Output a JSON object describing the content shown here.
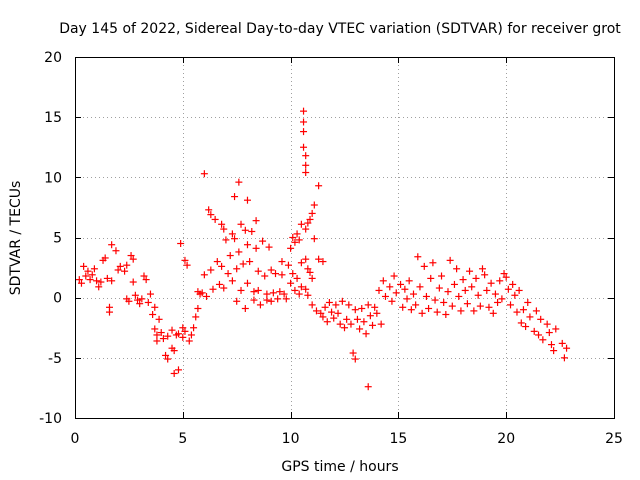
{
  "chart_data": {
    "type": "scatter",
    "title": "Day 145 of 2022, Sidereal Day-to-day VTEC variation (SDTVAR) for receiver grot",
    "xlabel": "GPS time / hours",
    "ylabel": "SDTVAR / TECUs",
    "xlim": [
      0,
      25
    ],
    "ylim": [
      -10,
      20
    ],
    "xticks": [
      0,
      5,
      10,
      15,
      20,
      25
    ],
    "yticks": [
      -10,
      -5,
      0,
      5,
      10,
      15,
      20
    ],
    "xtick_labels": [
      "0",
      "5",
      "10",
      "15",
      "20",
      "25"
    ],
    "ytick_labels": [
      "-10",
      "-5",
      "0",
      "5",
      "10",
      "15",
      "20"
    ],
    "grid": true,
    "marker": "+",
    "color": "#ff0000",
    "series": [
      {
        "name": "SDTVAR",
        "points": [
          [
            0.2,
            1.5
          ],
          [
            0.3,
            1.2
          ],
          [
            0.4,
            2.6
          ],
          [
            0.5,
            1.8
          ],
          [
            0.6,
            2.2
          ],
          [
            0.7,
            1.5
          ],
          [
            0.8,
            1.9
          ],
          [
            0.9,
            2.4
          ],
          [
            1.0,
            1.4
          ],
          [
            1.1,
            0.9
          ],
          [
            1.2,
            1.3
          ],
          [
            1.3,
            3.1
          ],
          [
            1.4,
            3.3
          ],
          [
            1.5,
            1.6
          ],
          [
            1.6,
            -0.8
          ],
          [
            1.6,
            -1.2
          ],
          [
            1.7,
            1.4
          ],
          [
            1.7,
            4.4
          ],
          [
            1.9,
            3.9
          ],
          [
            2.0,
            2.3
          ],
          [
            2.1,
            2.6
          ],
          [
            2.3,
            2.2
          ],
          [
            2.4,
            2.7
          ],
          [
            2.4,
            -0.1
          ],
          [
            2.5,
            -0.3
          ],
          [
            2.6,
            3.5
          ],
          [
            2.7,
            3.2
          ],
          [
            2.7,
            1.3
          ],
          [
            2.8,
            0.2
          ],
          [
            2.9,
            -0.2
          ],
          [
            3.0,
            -0.5
          ],
          [
            3.1,
            -0.1
          ],
          [
            3.2,
            1.8
          ],
          [
            3.3,
            1.5
          ],
          [
            3.4,
            -0.4
          ],
          [
            3.5,
            0.3
          ],
          [
            3.6,
            -1.4
          ],
          [
            3.7,
            -0.8
          ],
          [
            3.7,
            -2.6
          ],
          [
            3.8,
            -3.1
          ],
          [
            3.8,
            -3.6
          ],
          [
            3.9,
            -1.8
          ],
          [
            4.0,
            -2.9
          ],
          [
            4.1,
            -3.4
          ],
          [
            4.2,
            -4.8
          ],
          [
            4.3,
            -5.1
          ],
          [
            4.3,
            -3.2
          ],
          [
            4.5,
            -2.7
          ],
          [
            4.5,
            -4.2
          ],
          [
            4.6,
            -6.3
          ],
          [
            4.6,
            -4.4
          ],
          [
            4.7,
            -3.1
          ],
          [
            4.8,
            -3.0
          ],
          [
            4.8,
            -6.0
          ],
          [
            4.9,
            4.5
          ],
          [
            5.0,
            -2.5
          ],
          [
            5.0,
            -3.3
          ],
          [
            5.1,
            -2.8
          ],
          [
            5.1,
            3.1
          ],
          [
            5.2,
            2.7
          ],
          [
            5.3,
            -3.6
          ],
          [
            5.4,
            -3.1
          ],
          [
            5.5,
            -2.5
          ],
          [
            5.6,
            -1.6
          ],
          [
            5.7,
            -0.9
          ],
          [
            5.7,
            0.5
          ],
          [
            5.8,
            0.3
          ],
          [
            5.9,
            0.4
          ],
          [
            6.0,
            1.9
          ],
          [
            6.0,
            10.3
          ],
          [
            6.1,
            0.1
          ],
          [
            6.2,
            7.3
          ],
          [
            6.3,
            6.9
          ],
          [
            6.3,
            2.3
          ],
          [
            6.4,
            0.7
          ],
          [
            6.5,
            6.5
          ],
          [
            6.6,
            3.0
          ],
          [
            6.7,
            1.1
          ],
          [
            6.8,
            6.1
          ],
          [
            6.8,
            2.6
          ],
          [
            6.9,
            0.8
          ],
          [
            6.9,
            5.7
          ],
          [
            7.0,
            4.8
          ],
          [
            7.1,
            2.0
          ],
          [
            7.2,
            3.5
          ],
          [
            7.3,
            5.3
          ],
          [
            7.3,
            1.4
          ],
          [
            7.4,
            4.9
          ],
          [
            7.4,
            8.4
          ],
          [
            7.5,
            2.4
          ],
          [
            7.5,
            -0.3
          ],
          [
            7.6,
            9.6
          ],
          [
            7.6,
            3.8
          ],
          [
            7.7,
            6.1
          ],
          [
            7.7,
            0.6
          ],
          [
            7.8,
            2.8
          ],
          [
            7.9,
            5.6
          ],
          [
            7.9,
            -0.9
          ],
          [
            8.0,
            8.1
          ],
          [
            8.0,
            4.4
          ],
          [
            8.0,
            1.2
          ],
          [
            8.1,
            3.0
          ],
          [
            8.2,
            5.5
          ],
          [
            8.3,
            0.5
          ],
          [
            8.3,
            -0.2
          ],
          [
            8.4,
            6.4
          ],
          [
            8.4,
            4.1
          ],
          [
            8.5,
            2.2
          ],
          [
            8.5,
            0.6
          ],
          [
            8.6,
            -0.6
          ],
          [
            8.7,
            4.7
          ],
          [
            8.8,
            1.8
          ],
          [
            8.9,
            0.3
          ],
          [
            8.9,
            -0.2
          ],
          [
            9.0,
            4.2
          ],
          [
            9.1,
            2.3
          ],
          [
            9.1,
            -0.3
          ],
          [
            9.2,
            0.4
          ],
          [
            9.3,
            2.0
          ],
          [
            9.4,
            -0.1
          ],
          [
            9.5,
            0.5
          ],
          [
            9.6,
            1.9
          ],
          [
            9.6,
            3.0
          ],
          [
            9.7,
            0.3
          ],
          [
            9.8,
            -0.1
          ],
          [
            9.9,
            2.7
          ],
          [
            10.0,
            4.1
          ],
          [
            10.0,
            1.2
          ],
          [
            10.1,
            5.0
          ],
          [
            10.1,
            2.0
          ],
          [
            10.2,
            4.6
          ],
          [
            10.2,
            0.6
          ],
          [
            10.3,
            5.3
          ],
          [
            10.3,
            1.6
          ],
          [
            10.4,
            4.8
          ],
          [
            10.4,
            0.3
          ],
          [
            10.5,
            6.1
          ],
          [
            10.5,
            2.9
          ],
          [
            10.5,
            0.9
          ],
          [
            10.6,
            15.5
          ],
          [
            10.6,
            14.6
          ],
          [
            10.6,
            13.8
          ],
          [
            10.6,
            12.5
          ],
          [
            10.7,
            11.8
          ],
          [
            10.7,
            11.0
          ],
          [
            10.7,
            10.4
          ],
          [
            10.7,
            5.7
          ],
          [
            10.7,
            3.2
          ],
          [
            10.7,
            0.7
          ],
          [
            10.8,
            6.2
          ],
          [
            10.8,
            2.4
          ],
          [
            10.8,
            0.2
          ],
          [
            10.9,
            6.5
          ],
          [
            10.9,
            2.1
          ],
          [
            11.0,
            7.0
          ],
          [
            11.0,
            1.6
          ],
          [
            11.0,
            -0.6
          ],
          [
            11.1,
            7.7
          ],
          [
            11.1,
            4.9
          ],
          [
            11.2,
            -1.1
          ],
          [
            11.3,
            9.3
          ],
          [
            11.3,
            3.2
          ],
          [
            11.4,
            -1.3
          ],
          [
            11.5,
            3.0
          ],
          [
            11.5,
            -1.6
          ],
          [
            11.6,
            -0.8
          ],
          [
            11.7,
            -2.0
          ],
          [
            11.8,
            -0.4
          ],
          [
            11.9,
            -1.2
          ],
          [
            12.0,
            -1.7
          ],
          [
            12.1,
            -0.6
          ],
          [
            12.2,
            -1.3
          ],
          [
            12.3,
            -2.2
          ],
          [
            12.4,
            -0.3
          ],
          [
            12.5,
            -2.5
          ],
          [
            12.6,
            -1.8
          ],
          [
            12.7,
            -0.6
          ],
          [
            12.8,
            -2.2
          ],
          [
            12.9,
            -4.6
          ],
          [
            13.0,
            -5.1
          ],
          [
            13.0,
            -1.0
          ],
          [
            13.1,
            -1.8
          ],
          [
            13.2,
            -2.6
          ],
          [
            13.3,
            -0.9
          ],
          [
            13.4,
            -2.0
          ],
          [
            13.5,
            -3.0
          ],
          [
            13.6,
            -7.4
          ],
          [
            13.6,
            -0.6
          ],
          [
            13.7,
            -1.5
          ],
          [
            13.8,
            -2.3
          ],
          [
            13.9,
            -0.8
          ],
          [
            14.0,
            -1.3
          ],
          [
            14.1,
            0.6
          ],
          [
            14.2,
            -2.2
          ],
          [
            14.3,
            1.4
          ],
          [
            14.4,
            0.1
          ],
          [
            14.6,
            0.9
          ],
          [
            14.7,
            -0.3
          ],
          [
            14.8,
            1.8
          ],
          [
            14.9,
            0.4
          ],
          [
            15.1,
            1.1
          ],
          [
            15.2,
            -0.8
          ],
          [
            15.3,
            0.7
          ],
          [
            15.4,
            -0.1
          ],
          [
            15.5,
            1.4
          ],
          [
            15.6,
            -1.0
          ],
          [
            15.7,
            0.3
          ],
          [
            15.8,
            -0.6
          ],
          [
            15.9,
            3.4
          ],
          [
            16.0,
            0.9
          ],
          [
            16.1,
            -1.3
          ],
          [
            16.2,
            2.6
          ],
          [
            16.3,
            0.1
          ],
          [
            16.4,
            -0.9
          ],
          [
            16.5,
            1.6
          ],
          [
            16.6,
            2.9
          ],
          [
            16.7,
            -0.2
          ],
          [
            16.8,
            -1.2
          ],
          [
            16.9,
            0.8
          ],
          [
            17.0,
            1.8
          ],
          [
            17.1,
            -0.4
          ],
          [
            17.2,
            -1.4
          ],
          [
            17.3,
            0.5
          ],
          [
            17.4,
            3.1
          ],
          [
            17.5,
            -0.7
          ],
          [
            17.6,
            1.1
          ],
          [
            17.7,
            2.4
          ],
          [
            17.8,
            0.1
          ],
          [
            17.9,
            -1.1
          ],
          [
            18.0,
            1.5
          ],
          [
            18.1,
            0.6
          ],
          [
            18.2,
            -0.5
          ],
          [
            18.3,
            2.2
          ],
          [
            18.4,
            0.9
          ],
          [
            18.5,
            -1.1
          ],
          [
            18.6,
            1.6
          ],
          [
            18.7,
            0.2
          ],
          [
            18.8,
            -0.7
          ],
          [
            18.9,
            2.4
          ],
          [
            19.0,
            1.9
          ],
          [
            19.1,
            0.6
          ],
          [
            19.2,
            -0.8
          ],
          [
            19.3,
            1.2
          ],
          [
            19.4,
            -1.3
          ],
          [
            19.5,
            0.3
          ],
          [
            19.6,
            -0.4
          ],
          [
            19.7,
            1.4
          ],
          [
            19.8,
            -0.1
          ],
          [
            19.9,
            2.0
          ],
          [
            20.0,
            1.7
          ],
          [
            20.1,
            0.7
          ],
          [
            20.2,
            -0.6
          ],
          [
            20.3,
            1.1
          ],
          [
            20.4,
            0.2
          ],
          [
            20.5,
            -1.2
          ],
          [
            20.6,
            0.6
          ],
          [
            20.7,
            -2.1
          ],
          [
            20.8,
            -1.0
          ],
          [
            20.9,
            -2.4
          ],
          [
            21.0,
            -0.4
          ],
          [
            21.1,
            -1.6
          ],
          [
            21.3,
            -2.8
          ],
          [
            21.4,
            -1.1
          ],
          [
            21.5,
            -3.1
          ],
          [
            21.6,
            -1.8
          ],
          [
            21.7,
            -3.5
          ],
          [
            21.9,
            -2.2
          ],
          [
            22.0,
            -2.9
          ],
          [
            22.1,
            -3.9
          ],
          [
            22.2,
            -4.4
          ],
          [
            22.3,
            -2.6
          ],
          [
            22.6,
            -3.8
          ],
          [
            22.7,
            -5.0
          ],
          [
            22.8,
            -4.2
          ]
        ]
      }
    ]
  }
}
